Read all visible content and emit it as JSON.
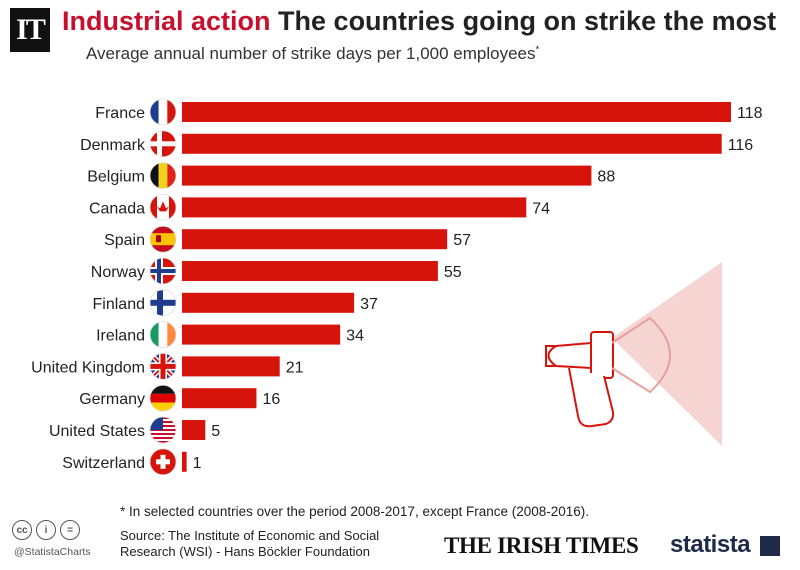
{
  "header": {
    "logo_text": "IT",
    "title_accent": "Industrial action",
    "title_main": "The countries going on strike the most",
    "subtitle": "Average annual number of strike days per 1,000 employees",
    "subtitle_mark": "*"
  },
  "chart_data": {
    "type": "bar",
    "orientation": "horizontal",
    "title": "The countries going on strike the most",
    "subtitle": "Average annual number of strike days per 1,000 employees",
    "categories": [
      "France",
      "Denmark",
      "Belgium",
      "Canada",
      "Spain",
      "Norway",
      "Finland",
      "Ireland",
      "United Kingdom",
      "Germany",
      "United States",
      "Switzerland"
    ],
    "values": [
      118,
      116,
      88,
      74,
      57,
      55,
      37,
      34,
      21,
      16,
      5,
      1
    ],
    "bar_color": "#d7140b",
    "xlim": [
      0,
      118
    ],
    "grid": false,
    "legend": "none",
    "data_labels": true
  },
  "flags": [
    "france-flag-icon",
    "denmark-flag-icon",
    "belgium-flag-icon",
    "canada-flag-icon",
    "spain-flag-icon",
    "norway-flag-icon",
    "finland-flag-icon",
    "ireland-flag-icon",
    "uk-flag-icon",
    "germany-flag-icon",
    "usa-flag-icon",
    "switzerland-flag-icon"
  ],
  "footer": {
    "footnote": "* In selected countries over the period 2008-2017, except France (2008-2016).",
    "source": "Source: The Institute of Economic and Social Research (WSI) - Hans Böckler Foundation",
    "handle": "@StatistaCharts",
    "irish_times": "THE IRISH TIMES",
    "statista": "statista",
    "cc_icons": [
      "cc",
      "i",
      "="
    ]
  },
  "decoration": {
    "megaphone": "megaphone-icon"
  }
}
